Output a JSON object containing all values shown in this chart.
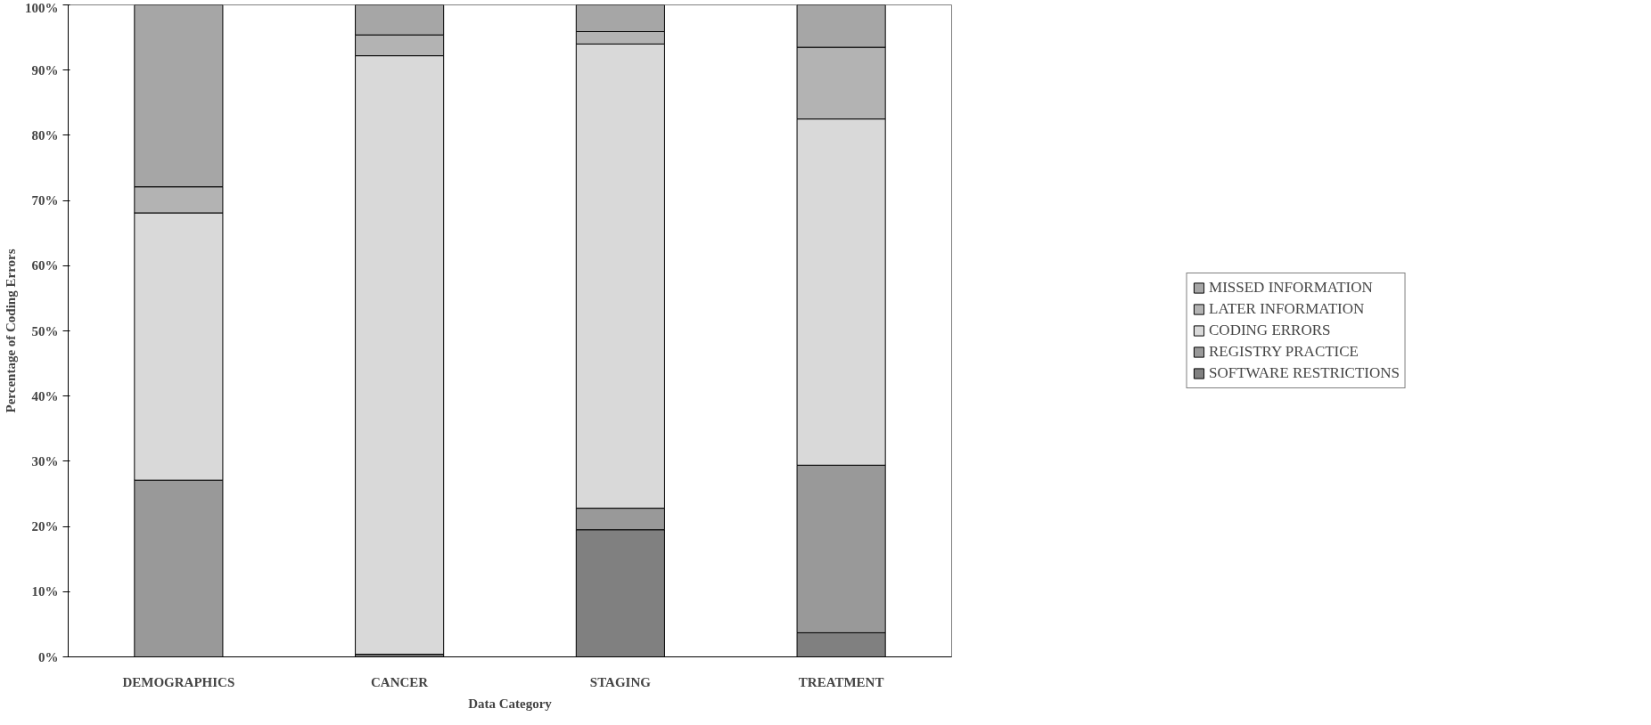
{
  "chart_data": {
    "type": "bar",
    "stacked": true,
    "xlabel": "Data Category",
    "ylabel": "Percentage of Coding Errors",
    "categories": [
      "DEMOGRAPHICS",
      "CANCER",
      "STAGING",
      "TREATMENT"
    ],
    "series": [
      {
        "name": "SOFTWARE RESTRICTIONS",
        "color": "#808080",
        "values": [
          0,
          0.4,
          19.5,
          3.7
        ]
      },
      {
        "name": "REGISTRY PRACTICE",
        "color": "#999999",
        "values": [
          27.1,
          0,
          3.3,
          25.7
        ]
      },
      {
        "name": "CODING ERRORS",
        "color": "#d9d9d9",
        "values": [
          41.0,
          91.8,
          71.2,
          53.1
        ]
      },
      {
        "name": "LATER INFORMATION",
        "color": "#b3b3b3",
        "values": [
          4.0,
          3.2,
          1.9,
          11.0
        ]
      },
      {
        "name": "MISSED INFORMATION",
        "color": "#a6a6a6",
        "values": [
          27.9,
          4.6,
          4.1,
          6.5
        ]
      }
    ],
    "ylim": [
      0,
      100
    ],
    "yticks": [
      {
        "value": 0,
        "label": "0%"
      },
      {
        "value": 10,
        "label": "10%"
      },
      {
        "value": 20,
        "label": "20%"
      },
      {
        "value": 30,
        "label": "30%"
      },
      {
        "value": 40,
        "label": "40%"
      },
      {
        "value": 50,
        "label": "50%"
      },
      {
        "value": 60,
        "label": "60%"
      },
      {
        "value": 70,
        "label": "70%"
      },
      {
        "value": 80,
        "label": "80%"
      },
      {
        "value": 90,
        "label": "90%"
      },
      {
        "value": 100,
        "label": "100%"
      }
    ],
    "grid": false,
    "legend": "right"
  }
}
